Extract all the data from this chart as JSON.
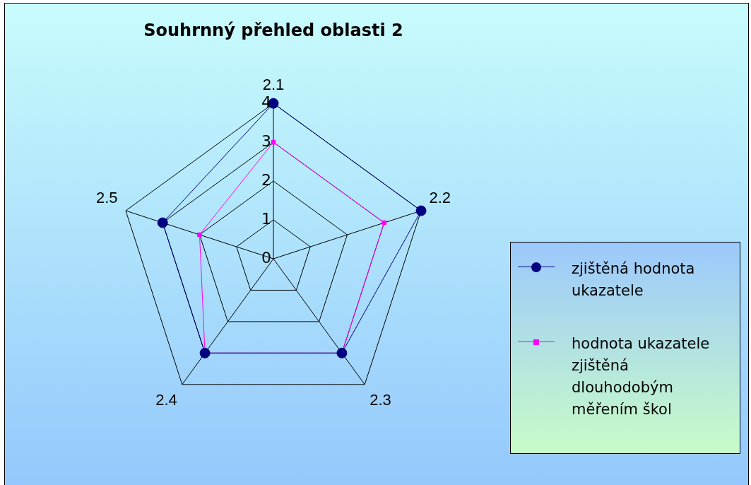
{
  "chart_data": {
    "type": "radar",
    "title": "Souhrnný přehled oblasti 2",
    "categories": [
      "2.1",
      "2.2",
      "2.3",
      "2.4",
      "2.5"
    ],
    "series": [
      {
        "name": "zjištěná hodnota ukazatele",
        "color": "#000080",
        "marker": "circle",
        "values": [
          4,
          4,
          3,
          3,
          3
        ]
      },
      {
        "name": "hodnota ukazatele zjištěná dlouhodobým měřením škol",
        "color": "#ff00ff",
        "marker": "square",
        "values": [
          3,
          3,
          3,
          3,
          2
        ]
      }
    ],
    "ylim": [
      0,
      4
    ],
    "yticks": [
      0,
      1,
      2,
      3,
      4
    ],
    "grid": true,
    "legend": "right"
  }
}
